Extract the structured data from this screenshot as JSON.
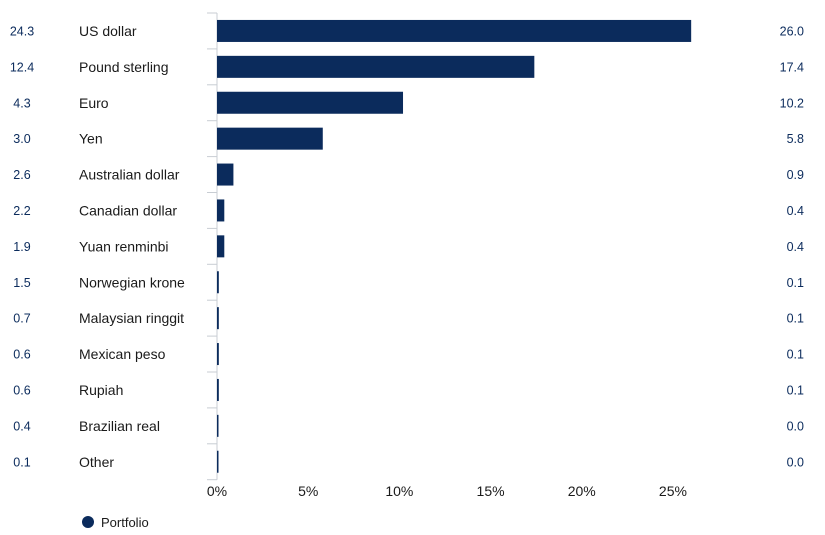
{
  "chart_data": {
    "type": "bar",
    "orientation": "horizontal",
    "categories": [
      "US dollar",
      "Pound sterling",
      "Euro",
      "Yen",
      "Australian dollar",
      "Canadian dollar",
      "Yuan renminbi",
      "Norwegian krone",
      "Malaysian ringgit",
      "Mexican peso",
      "Rupiah",
      "Brazilian real",
      "Other"
    ],
    "left_values": [
      "24.3",
      "12.4",
      "4.3",
      "3.0",
      "2.6",
      "2.2",
      "1.9",
      "1.5",
      "0.7",
      "0.6",
      "0.6",
      "0.4",
      "0.1"
    ],
    "series": [
      {
        "name": "Portfolio",
        "values": [
          26.0,
          17.4,
          10.2,
          5.8,
          0.9,
          0.4,
          0.4,
          0.1,
          0.1,
          0.1,
          0.1,
          0.0,
          0.0
        ],
        "value_labels": [
          "26.0",
          "17.4",
          "10.2",
          "5.8",
          "0.9",
          "0.4",
          "0.4",
          "0.1",
          "0.1",
          "0.1",
          "0.1",
          "0.0",
          "0.0"
        ]
      }
    ],
    "x_ticks": [
      "0%",
      "5%",
      "10%",
      "15%",
      "20%",
      "25%"
    ],
    "x_tick_values": [
      0,
      5,
      10,
      15,
      20,
      25
    ],
    "xlim": [
      0,
      29.5
    ],
    "grid": false,
    "legend_position": "bottom-left",
    "colors": {
      "bar": "#0b2b5c",
      "value_text": "#0b2b5c",
      "axis": "#c8cdd3"
    }
  }
}
